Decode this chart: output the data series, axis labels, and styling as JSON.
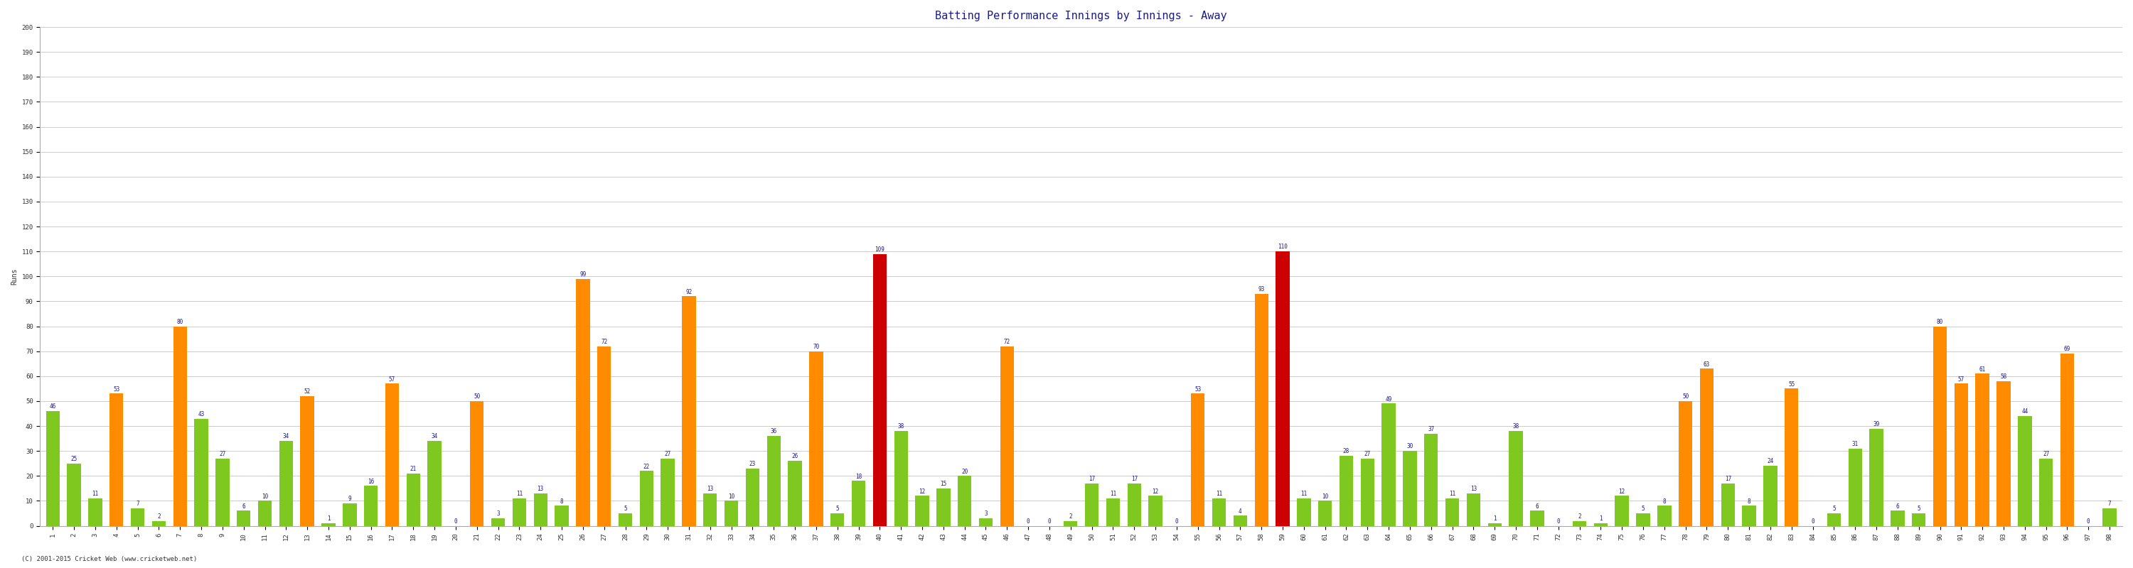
{
  "title": "Batting Performance Innings by Innings - Away",
  "ylabel": "Runs",
  "xlabel": "",
  "background_color": "#f0f0f0",
  "plot_bg_color": "#ffffff",
  "grid_color": "#cccccc",
  "bar_color_normal": "#7fc820",
  "bar_color_fifty": "#ff8c00",
  "bar_color_hundred": "#cc0000",
  "innings": [
    1,
    2,
    3,
    4,
    5,
    6,
    7,
    8,
    9,
    10,
    11,
    12,
    13,
    14,
    15,
    16,
    17,
    18,
    19,
    20,
    21,
    22,
    23,
    24,
    25,
    26,
    27,
    28,
    29,
    30,
    31,
    32,
    33,
    34,
    35,
    36,
    37,
    38,
    39,
    40,
    41,
    42,
    43,
    44,
    45,
    46,
    47,
    48,
    49,
    50,
    51,
    52,
    53,
    54,
    55,
    56,
    57,
    58,
    59,
    60,
    61,
    62,
    63,
    64,
    65,
    66,
    67,
    68,
    69,
    70,
    71,
    72,
    73,
    74,
    75,
    76,
    77,
    78,
    79,
    80,
    81,
    82,
    83,
    84,
    85,
    86,
    87,
    88,
    89,
    90,
    91,
    92,
    93,
    94,
    95,
    96,
    97,
    98
  ],
  "values": [
    46,
    25,
    11,
    53,
    7,
    2,
    80,
    43,
    27,
    6,
    10,
    34,
    52,
    1,
    9,
    16,
    57,
    21,
    34,
    0,
    50,
    3,
    11,
    13,
    8,
    99,
    72,
    5,
    22,
    27,
    92,
    13,
    10,
    23,
    36,
    26,
    70,
    5,
    18,
    109,
    38,
    12,
    15,
    20,
    3,
    72,
    0,
    0,
    2,
    17,
    11,
    17,
    12,
    0,
    53,
    11,
    4,
    93,
    110,
    11,
    10,
    28,
    27,
    49,
    30,
    37,
    11,
    13,
    1,
    38,
    6,
    0,
    2,
    1,
    12,
    5,
    8,
    50,
    63,
    17,
    8,
    24,
    55,
    0,
    5,
    31,
    39,
    6,
    5,
    80,
    57,
    61,
    58,
    44,
    27,
    69,
    0,
    7
  ],
  "ylim": [
    0,
    200
  ],
  "yticks": [
    0,
    10,
    20,
    30,
    40,
    50,
    60,
    70,
    80,
    90,
    100,
    110,
    120,
    130,
    140,
    150,
    160,
    170,
    180,
    190,
    200
  ],
  "title_fontsize": 11,
  "label_fontsize": 7,
  "tick_fontsize": 6.5,
  "value_fontsize": 5.5,
  "footer": "(C) 2001-2015 Cricket Web (www.cricketweb.net)"
}
